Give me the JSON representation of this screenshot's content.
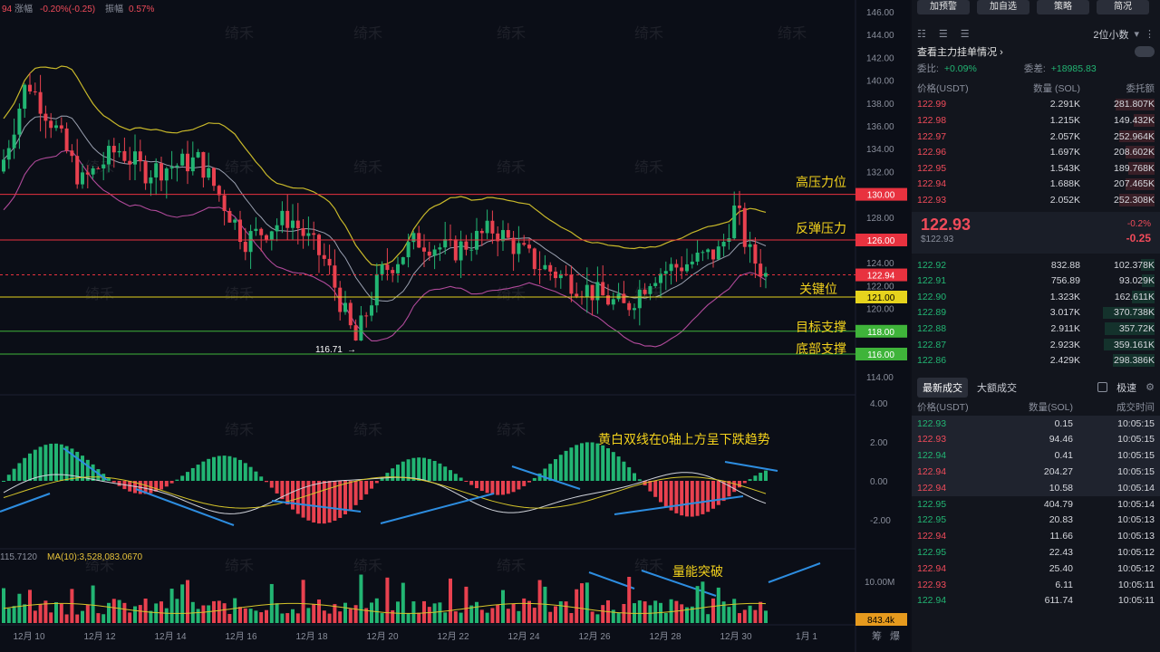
{
  "header": {
    "prefix": "94",
    "change_label": "涨幅",
    "change_value": "-0.20%(-0.25)",
    "amp_label": "振幅",
    "amp_value": "0.57%"
  },
  "watermark": "绮禾",
  "price_axis": [
    "146.00",
    "144.00",
    "142.00",
    "140.00",
    "138.00",
    "136.00",
    "134.00",
    "132.00",
    "130.00",
    "128.00",
    "126.00",
    "124.00",
    "122.00",
    "120.00",
    "118.00",
    "116.00",
    "114.00"
  ],
  "macd_axis": [
    "4.00",
    "2.00",
    "0.00",
    "-2.00"
  ],
  "vol_axis": [
    "10.00M"
  ],
  "date_axis": [
    "12月 10",
    "12月 12",
    "12月 14",
    "12月 16",
    "12月 18",
    "12月 20",
    "12月 22",
    "12月 24",
    "12月 26",
    "12月 28",
    "12月 30",
    "1月 1"
  ],
  "price_levels": [
    {
      "label": "130.00",
      "color": "#e8323f",
      "text": "#ffffff"
    },
    {
      "label": "126.00",
      "color": "#e8323f",
      "text": "#ffffff"
    },
    {
      "label": "122.94",
      "color": "#e8323f",
      "text": "#ffffff"
    },
    {
      "label": "121.00",
      "color": "#e6d31d",
      "text": "#000000"
    },
    {
      "label": "118.00",
      "color": "#3fb43a",
      "text": "#ffffff"
    },
    {
      "label": "116.00",
      "color": "#3fb43a",
      "text": "#ffffff"
    }
  ],
  "annotations": {
    "high_pressure": "高压力位",
    "rebound_pressure": "反弹压力",
    "key_level": "关键位",
    "target_support": "目标支撑",
    "bottom_support": "底部支撑",
    "low_marker": "116.71",
    "macd_note": "黄白双线在0轴上方呈下跌趋势",
    "volume_note": "量能突破"
  },
  "volume_info": {
    "left": "115.7120",
    "ma": "MA(10):3,528,083.0670",
    "current": "843.4k"
  },
  "footer": {
    "brand": "@ 链上绮禾",
    "left_labels": [
      "筹",
      "爆"
    ]
  },
  "panel": {
    "buttons": [
      "加预警",
      "加自选",
      "策略",
      "简况"
    ],
    "decimal": "2位小数",
    "view_depth": "查看主力挂单情况",
    "ratio_label": "委比:",
    "ratio_value": "+0.09%",
    "diff_label": "委差:",
    "diff_value": "+18985.83",
    "ob_headers": [
      "价格(USDT)",
      "数量 (SOL)",
      "委托额"
    ],
    "asks": [
      {
        "price": "122.99",
        "qty": "2.291K",
        "total": "281.807K",
        "w": 0.62
      },
      {
        "price": "122.98",
        "qty": "1.215K",
        "total": "149.432K",
        "w": 0.33
      },
      {
        "price": "122.97",
        "qty": "2.057K",
        "total": "252.964K",
        "w": 0.56
      },
      {
        "price": "122.96",
        "qty": "1.697K",
        "total": "208.602K",
        "w": 0.46
      },
      {
        "price": "122.95",
        "qty": "1.543K",
        "total": "189.768K",
        "w": 0.42
      },
      {
        "price": "122.94",
        "qty": "1.688K",
        "total": "207.465K",
        "w": 0.46
      },
      {
        "price": "122.93",
        "qty": "2.052K",
        "total": "252.308K",
        "w": 0.56
      }
    ],
    "last_price": "122.93",
    "last_usd": "$122.93",
    "last_pct": "-0.2%",
    "last_chg": "-0.25",
    "bids": [
      {
        "price": "122.92",
        "qty": "832.88",
        "total": "102.378K",
        "w": 0.22
      },
      {
        "price": "122.91",
        "qty": "756.89",
        "total": "93.029K",
        "w": 0.2
      },
      {
        "price": "122.90",
        "qty": "1.323K",
        "total": "162.611K",
        "w": 0.36
      },
      {
        "price": "122.89",
        "qty": "3.017K",
        "total": "370.738K",
        "w": 0.82
      },
      {
        "price": "122.88",
        "qty": "2.911K",
        "total": "357.72K",
        "w": 0.79
      },
      {
        "price": "122.87",
        "qty": "2.923K",
        "total": "359.161K",
        "w": 0.8
      },
      {
        "price": "122.86",
        "qty": "2.429K",
        "total": "298.386K",
        "w": 0.66
      }
    ],
    "trade_tabs": [
      "最新成交",
      "大额成交"
    ],
    "extreme": "极速",
    "trade_headers": [
      "价格(USDT)",
      "数量(SOL)",
      "成交时间"
    ],
    "trades": [
      {
        "price": "122.93",
        "qty": "0.15",
        "time": "10:05:15",
        "side": "green",
        "hl": true
      },
      {
        "price": "122.93",
        "qty": "94.46",
        "time": "10:05:15",
        "side": "red",
        "hl": true
      },
      {
        "price": "122.94",
        "qty": "0.41",
        "time": "10:05:15",
        "side": "green",
        "hl": true
      },
      {
        "price": "122.94",
        "qty": "204.27",
        "time": "10:05:15",
        "side": "red",
        "hl": true
      },
      {
        "price": "122.94",
        "qty": "10.58",
        "time": "10:05:14",
        "side": "red",
        "hl": true
      },
      {
        "price": "122.95",
        "qty": "404.79",
        "time": "10:05:14",
        "side": "green",
        "hl": false
      },
      {
        "price": "122.95",
        "qty": "20.83",
        "time": "10:05:13",
        "side": "green",
        "hl": false
      },
      {
        "price": "122.94",
        "qty": "11.66",
        "time": "10:05:13",
        "side": "red",
        "hl": false
      },
      {
        "price": "122.95",
        "qty": "22.43",
        "time": "10:05:12",
        "side": "green",
        "hl": false
      },
      {
        "price": "122.94",
        "qty": "25.40",
        "time": "10:05:12",
        "side": "red",
        "hl": false
      },
      {
        "price": "122.93",
        "qty": "6.11",
        "time": "10:05:11",
        "side": "red",
        "hl": false
      },
      {
        "price": "122.94",
        "qty": "611.74",
        "time": "10:05:11",
        "side": "green",
        "hl": false
      }
    ]
  }
}
